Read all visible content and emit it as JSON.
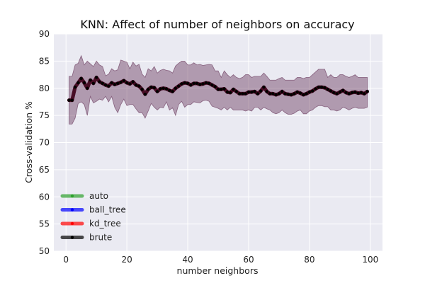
{
  "chart_data": {
    "type": "line",
    "title": "KNN: Affect of number of neighbors on accuracy",
    "xlabel": "number neighbors",
    "ylabel": "Cross-validation %",
    "xlim": [
      -4,
      104
    ],
    "ylim": [
      50,
      90
    ],
    "xticks": [
      0,
      20,
      40,
      60,
      80,
      100
    ],
    "yticks": [
      50,
      55,
      60,
      65,
      70,
      75,
      80,
      85,
      90
    ],
    "grid": true,
    "legend_position": "lower-left",
    "x": [
      1,
      2,
      3,
      4,
      5,
      6,
      7,
      8,
      9,
      10,
      11,
      12,
      13,
      14,
      15,
      16,
      17,
      18,
      19,
      20,
      21,
      22,
      23,
      24,
      25,
      26,
      27,
      28,
      29,
      30,
      31,
      32,
      33,
      34,
      35,
      36,
      37,
      38,
      39,
      40,
      41,
      42,
      43,
      44,
      45,
      46,
      47,
      48,
      49,
      50,
      51,
      52,
      53,
      54,
      55,
      56,
      57,
      58,
      59,
      60,
      61,
      62,
      63,
      64,
      65,
      66,
      67,
      68,
      69,
      70,
      71,
      72,
      73,
      74,
      75,
      76,
      77,
      78,
      79,
      80,
      81,
      82,
      83,
      84,
      85,
      86,
      87,
      88,
      89,
      90,
      91,
      92,
      93,
      94,
      95,
      96,
      97,
      98,
      99
    ],
    "series": [
      {
        "name": "auto",
        "color": "#2ca02c",
        "values": [
          77.8,
          77.8,
          80.2,
          81.0,
          81.8,
          81.0,
          80.0,
          81.5,
          80.9,
          82.0,
          81.2,
          80.9,
          80.6,
          80.4,
          81.0,
          80.7,
          80.9,
          81.1,
          81.4,
          81.0,
          80.8,
          81.2,
          80.6,
          80.4,
          79.8,
          78.9,
          79.8,
          80.2,
          80.1,
          79.4,
          79.9,
          80.0,
          79.9,
          79.6,
          79.4,
          80.0,
          80.4,
          80.8,
          81.0,
          80.9,
          80.6,
          80.9,
          80.9,
          80.7,
          80.8,
          81.0,
          80.9,
          80.6,
          80.3,
          79.8,
          79.8,
          79.9,
          79.3,
          79.2,
          79.8,
          79.4,
          79.0,
          79.0,
          79.0,
          79.3,
          79.3,
          79.4,
          79.0,
          79.5,
          80.2,
          79.4,
          79.0,
          79.0,
          78.8,
          79.0,
          79.4,
          79.0,
          78.9,
          78.8,
          79.0,
          79.3,
          79.1,
          78.8,
          79.0,
          79.3,
          79.5,
          79.9,
          80.2,
          80.2,
          80.1,
          79.8,
          79.5,
          79.2,
          79.0,
          79.3,
          79.6,
          79.2,
          79.0,
          79.2,
          79.3,
          79.1,
          79.2,
          79.0,
          79.4
        ]
      },
      {
        "name": "ball_tree",
        "color": "#0000ff",
        "values": [
          77.8,
          77.8,
          80.2,
          81.0,
          81.8,
          81.0,
          80.0,
          81.5,
          80.9,
          82.0,
          81.2,
          80.9,
          80.6,
          80.4,
          81.0,
          80.7,
          80.9,
          81.1,
          81.4,
          81.0,
          80.8,
          81.2,
          80.6,
          80.4,
          79.8,
          78.9,
          79.8,
          80.2,
          80.1,
          79.4,
          79.9,
          80.0,
          79.9,
          79.6,
          79.4,
          80.0,
          80.4,
          80.8,
          81.0,
          80.9,
          80.6,
          80.9,
          80.9,
          80.7,
          80.8,
          81.0,
          80.9,
          80.6,
          80.3,
          79.8,
          79.8,
          79.9,
          79.3,
          79.2,
          79.8,
          79.4,
          79.0,
          79.0,
          79.0,
          79.3,
          79.3,
          79.4,
          79.0,
          79.5,
          80.2,
          79.4,
          79.0,
          79.0,
          78.8,
          79.0,
          79.4,
          79.0,
          78.9,
          78.8,
          79.0,
          79.3,
          79.1,
          78.8,
          79.0,
          79.3,
          79.5,
          79.9,
          80.2,
          80.2,
          80.1,
          79.8,
          79.5,
          79.2,
          79.0,
          79.3,
          79.6,
          79.2,
          79.0,
          79.2,
          79.3,
          79.1,
          79.2,
          79.0,
          79.4
        ]
      },
      {
        "name": "kd_tree",
        "color": "#ff0000",
        "values": [
          77.8,
          77.8,
          80.2,
          81.0,
          81.8,
          81.0,
          80.0,
          81.5,
          80.9,
          82.0,
          81.2,
          80.9,
          80.6,
          80.4,
          81.0,
          80.7,
          80.9,
          81.1,
          81.4,
          81.0,
          80.8,
          81.2,
          80.6,
          80.4,
          79.8,
          78.9,
          79.8,
          80.2,
          80.1,
          79.4,
          79.9,
          80.0,
          79.9,
          79.6,
          79.4,
          80.0,
          80.4,
          80.8,
          81.0,
          80.9,
          80.6,
          80.9,
          80.9,
          80.7,
          80.8,
          81.0,
          80.9,
          80.6,
          80.3,
          79.8,
          79.8,
          79.9,
          79.3,
          79.2,
          79.8,
          79.4,
          79.0,
          79.0,
          79.0,
          79.3,
          79.3,
          79.4,
          79.0,
          79.5,
          80.2,
          79.4,
          79.0,
          79.0,
          78.8,
          79.0,
          79.4,
          79.0,
          78.9,
          78.8,
          79.0,
          79.3,
          79.1,
          78.8,
          79.0,
          79.3,
          79.5,
          79.9,
          80.2,
          80.2,
          80.1,
          79.8,
          79.5,
          79.2,
          79.0,
          79.3,
          79.6,
          79.2,
          79.0,
          79.2,
          79.3,
          79.1,
          79.2,
          79.0,
          79.4
        ]
      },
      {
        "name": "brute",
        "color": "#000000",
        "values": [
          77.8,
          77.8,
          80.2,
          81.0,
          81.8,
          81.0,
          80.0,
          81.5,
          80.9,
          82.0,
          81.2,
          80.9,
          80.6,
          80.4,
          81.0,
          80.7,
          80.9,
          81.1,
          81.4,
          81.0,
          80.8,
          81.2,
          80.6,
          80.4,
          79.8,
          78.9,
          79.8,
          80.2,
          80.1,
          79.4,
          79.9,
          80.0,
          79.9,
          79.6,
          79.4,
          80.0,
          80.4,
          80.8,
          81.0,
          80.9,
          80.6,
          80.9,
          80.9,
          80.7,
          80.8,
          81.0,
          80.9,
          80.6,
          80.3,
          79.8,
          79.8,
          79.9,
          79.3,
          79.2,
          79.8,
          79.4,
          79.0,
          79.0,
          79.0,
          79.3,
          79.3,
          79.4,
          79.0,
          79.5,
          80.2,
          79.4,
          79.0,
          79.0,
          78.8,
          79.0,
          79.4,
          79.0,
          78.9,
          78.8,
          79.0,
          79.3,
          79.1,
          78.8,
          79.0,
          79.3,
          79.5,
          79.9,
          80.2,
          80.2,
          80.1,
          79.8,
          79.5,
          79.2,
          79.0,
          79.3,
          79.6,
          79.2,
          79.0,
          79.2,
          79.3,
          79.1,
          79.2,
          79.0,
          79.4
        ]
      }
    ],
    "band": {
      "upper": [
        82.2,
        82.2,
        84.3,
        84.6,
        86.0,
        84.3,
        85.0,
        84.5,
        84.0,
        85.0,
        84.3,
        84.0,
        82.3,
        82.6,
        83.6,
        83.2,
        83.4,
        85.2,
        85.0,
        84.8,
        83.6,
        84.8,
        84.1,
        84.4,
        82.6,
        82.0,
        83.6,
        83.2,
        84.0,
        82.8,
        83.3,
        83.5,
        83.3,
        83.2,
        82.8,
        84.1,
        84.6,
        85.0,
        85.0,
        84.3,
        84.3,
        84.7,
        84.3,
        84.4,
        84.2,
        84.3,
        84.4,
        84.3,
        83.2,
        83.2,
        82.0,
        83.2,
        82.5,
        82.0,
        82.5,
        82.0,
        81.8,
        82.0,
        82.5,
        82.5,
        82.0,
        82.2,
        82.2,
        82.2,
        82.8,
        82.2,
        81.5,
        81.5,
        81.5,
        81.8,
        82.0,
        81.5,
        81.5,
        81.5,
        81.5,
        82.0,
        82.0,
        81.8,
        82.0,
        82.0,
        82.5,
        83.0,
        83.5,
        83.5,
        83.5,
        82.0,
        82.5,
        82.0,
        82.0,
        82.5,
        82.5,
        82.2,
        82.0,
        82.2,
        82.5,
        82.0,
        82.0,
        82.0,
        82.0
      ],
      "lower": [
        73.4,
        73.4,
        74.5,
        77.2,
        77.5,
        77.0,
        75.0,
        78.5,
        77.3,
        77.6,
        78.0,
        77.8,
        78.5,
        77.5,
        78.5,
        76.5,
        75.5,
        77.0,
        78.0,
        76.8,
        77.0,
        77.0,
        76.2,
        75.5,
        75.5,
        74.5,
        75.8,
        77.2,
        76.5,
        76.0,
        76.5,
        76.4,
        77.5,
        76.0,
        76.4,
        75.0,
        77.0,
        77.6,
        76.5,
        77.0,
        77.0,
        77.5,
        77.4,
        77.3,
        77.7,
        77.8,
        77.6,
        76.7,
        76.5,
        76.3,
        76.0,
        76.5,
        76.0,
        76.5,
        76.0,
        76.0,
        76.0,
        76.0,
        75.8,
        76.0,
        75.8,
        76.5,
        76.5,
        76.0,
        76.5,
        76.2,
        76.0,
        75.5,
        75.3,
        75.5,
        76.0,
        75.5,
        75.2,
        75.2,
        75.4,
        75.8,
        76.0,
        75.3,
        75.3,
        75.8,
        76.0,
        76.5,
        76.8,
        76.8,
        76.6,
        76.6,
        76.0,
        76.0,
        75.8,
        76.0,
        76.5,
        76.3,
        76.0,
        76.3,
        76.5,
        76.3,
        76.3,
        76.3,
        76.5
      ],
      "color": "#6b3a5e",
      "opacity": 0.45
    }
  }
}
